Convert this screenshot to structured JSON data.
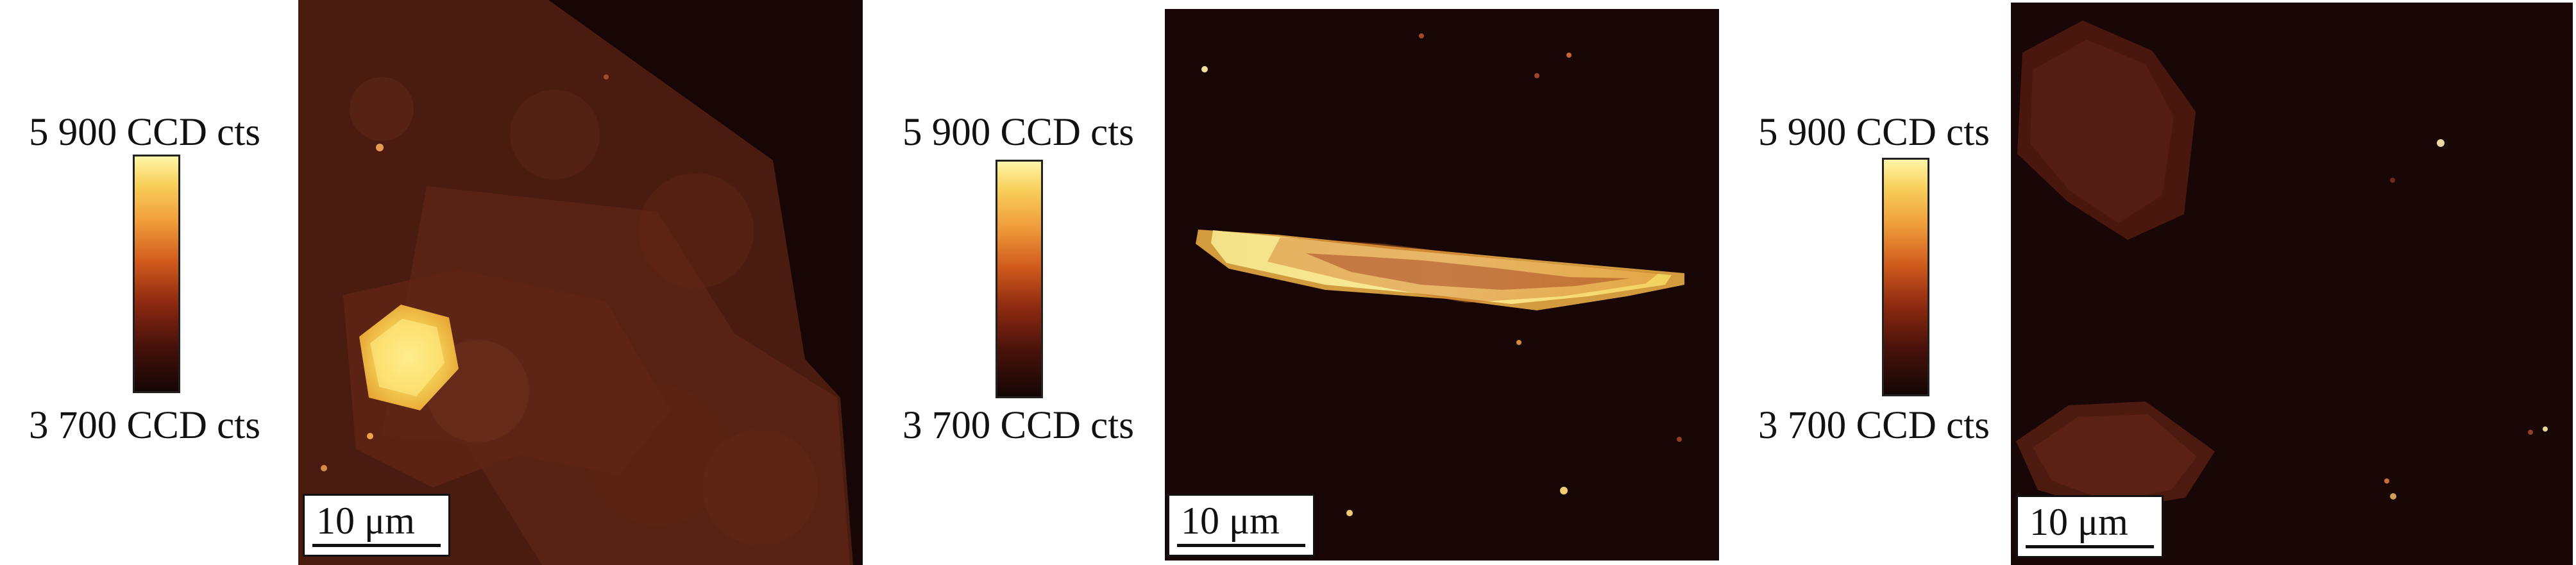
{
  "panels": [
    {
      "top_label": "5 900 CCD cts",
      "bottom_label": "3 700 CCD cts",
      "scale_label": "10 μm",
      "image_desc": "hexagonal bright crystal on extended dim lamellar sample"
    },
    {
      "top_label": "5 900 CCD cts",
      "bottom_label": "3 700 CCD cts",
      "scale_label": "10 μm",
      "image_desc": "elongated bright crystal streak"
    },
    {
      "top_label": "5 900 CCD cts",
      "bottom_label": "3 700 CCD cts",
      "scale_label": "10 μm",
      "image_desc": "two faint reddish fragments"
    }
  ],
  "colors": {
    "background": "#ffffff",
    "image_background": "#120505",
    "colorbar_top": "#fff6a8",
    "colorbar_bottom": "#140605",
    "text": "#111111"
  }
}
